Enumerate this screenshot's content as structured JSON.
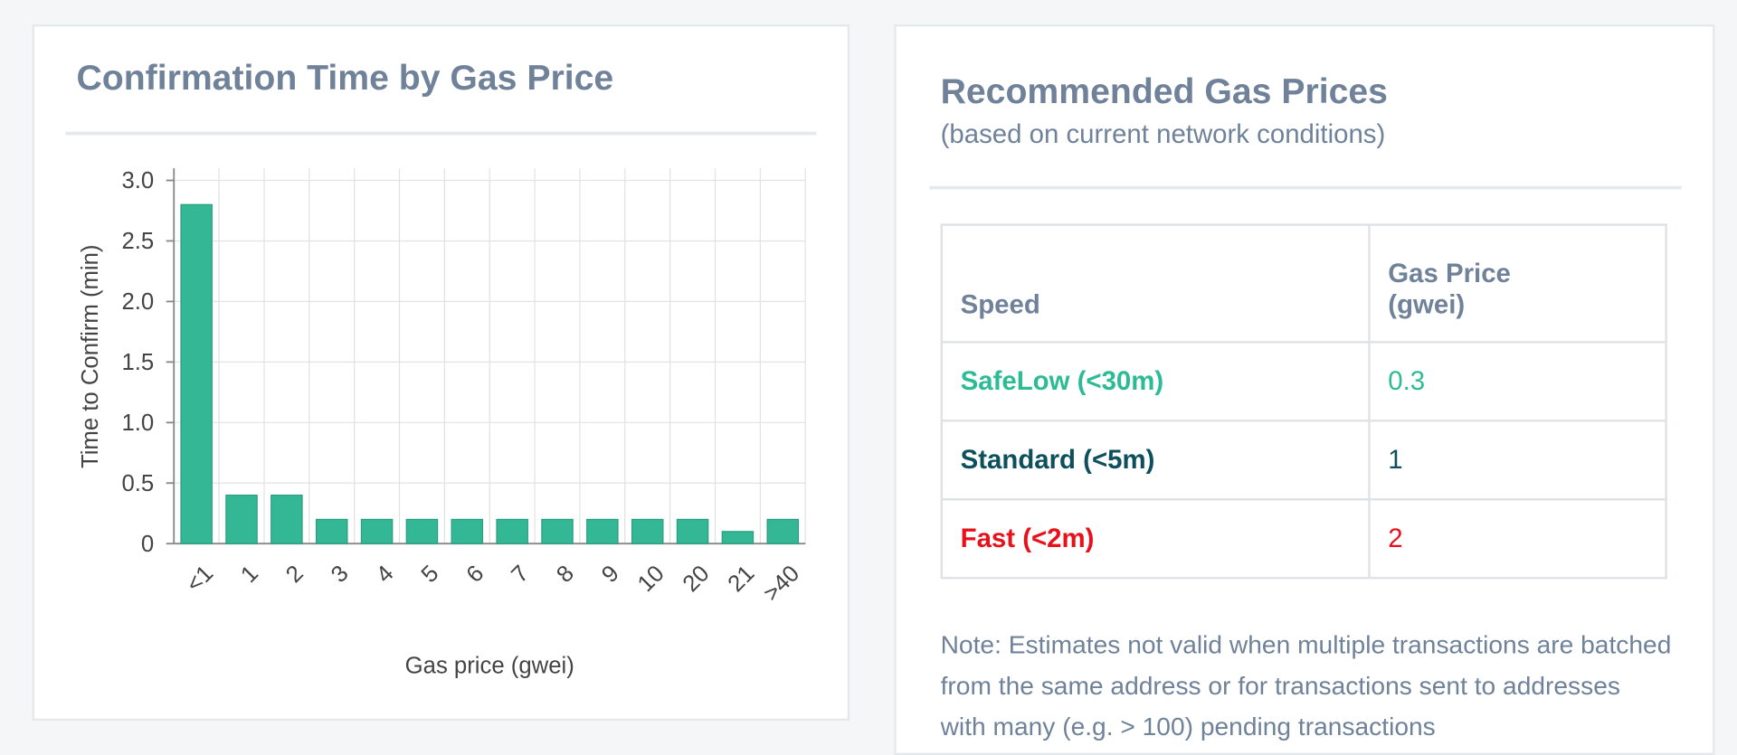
{
  "chart_data": {
    "type": "bar",
    "title": "Confirmation Time by Gas Price",
    "categories": [
      "<1",
      "1",
      "2",
      "3",
      "4",
      "5",
      "6",
      "7",
      "8",
      "9",
      "10",
      "20",
      "21",
      ">40"
    ],
    "values": [
      2.8,
      0.4,
      0.4,
      0.2,
      0.2,
      0.2,
      0.2,
      0.2,
      0.2,
      0.2,
      0.2,
      0.2,
      0.1,
      0.2
    ],
    "color": "#33b795",
    "ylim": [
      0,
      3.1
    ],
    "yticks": [
      0,
      0.5,
      {
        "value": 1,
        "label": "1.0"
      },
      1.5,
      {
        "value": 2,
        "label": "2.0"
      },
      2.5,
      {
        "value": 3,
        "label": "3.0"
      }
    ],
    "y_label": "Time to Confirm (min)",
    "x_label": "Gas price (gwei)",
    "grid": true
  },
  "panel": {
    "title": "Recommended Gas Prices",
    "subtitle": "(based on current network conditions)",
    "table": {
      "header": [
        "Speed",
        "Gas Price (gwei)"
      ],
      "rows": [
        [
          "SafeLow (<30m)",
          "0.3"
        ],
        [
          "Standard (<5m)",
          "1"
        ],
        [
          "Fast (<2m)",
          "2"
        ]
      ]
    },
    "note": "Note: Estimates not valid when multiple transactions are batched from the same address or for transactions sent to addresses with many (e.g. > 100) pending transactions"
  }
}
